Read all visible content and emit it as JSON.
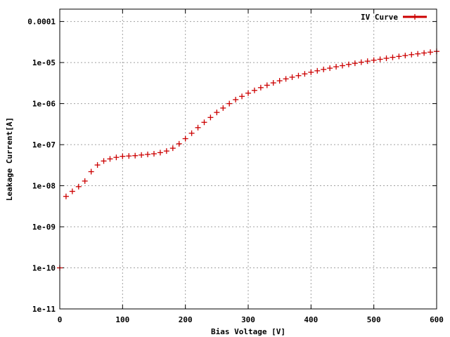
{
  "chart_data": {
    "type": "scatter",
    "xlabel": "Bias Voltage [V]",
    "ylabel": "Leakage Current[A]",
    "xlim": [
      0,
      600
    ],
    "ylim": [
      1e-11,
      0.0002
    ],
    "yscale": "log",
    "grid": true,
    "legend_position": "top-right",
    "x_ticks": [
      0,
      100,
      200,
      300,
      400,
      500,
      600
    ],
    "x_tick_labels": [
      "0",
      "100",
      "200",
      "300",
      "400",
      "500",
      "600"
    ],
    "y_ticks": [
      1e-11,
      1e-10,
      1e-09,
      1e-08,
      1e-07,
      1e-06,
      1e-05,
      0.0001
    ],
    "y_tick_labels": [
      "1e-11",
      "1e-10",
      "1e-09",
      "1e-08",
      "1e-07",
      "1e-06",
      "1e-05",
      "0.0001"
    ],
    "series": [
      {
        "name": "IV Curve",
        "color": "#cc0000",
        "marker": "plus",
        "x": [
          0,
          10,
          20,
          30,
          40,
          50,
          60,
          70,
          80,
          90,
          100,
          110,
          120,
          130,
          140,
          150,
          160,
          170,
          180,
          190,
          200,
          210,
          220,
          230,
          240,
          250,
          260,
          270,
          280,
          290,
          300,
          310,
          320,
          330,
          340,
          350,
          360,
          370,
          380,
          390,
          400,
          410,
          420,
          430,
          440,
          450,
          460,
          470,
          480,
          490,
          500,
          510,
          520,
          530,
          540,
          550,
          560,
          570,
          580,
          590,
          600
        ],
        "values": [
          1e-10,
          5.5e-09,
          7.3e-09,
          9.5e-09,
          1.3e-08,
          2.2e-08,
          3.2e-08,
          4e-08,
          4.5e-08,
          4.9e-08,
          5.2e-08,
          5.3e-08,
          5.4e-08,
          5.6e-08,
          5.8e-08,
          6e-08,
          6.4e-08,
          7e-08,
          8.2e-08,
          1.05e-07,
          1.4e-07,
          1.9e-07,
          2.6e-07,
          3.5e-07,
          4.6e-07,
          6.1e-07,
          7.8e-07,
          1e-06,
          1.25e-06,
          1.5e-06,
          1.8e-06,
          2.1e-06,
          2.45e-06,
          2.8e-06,
          3.2e-06,
          3.6e-06,
          4e-06,
          4.4e-06,
          4.8e-06,
          5.3e-06,
          5.8e-06,
          6.3e-06,
          6.8e-06,
          7.3e-06,
          7.9e-06,
          8.4e-06,
          9e-06,
          9.6e-06,
          1.02e-05,
          1.08e-05,
          1.14e-05,
          1.2e-05,
          1.27e-05,
          1.34e-05,
          1.41e-05,
          1.48e-05,
          1.56e-05,
          1.63e-05,
          1.71e-05,
          1.79e-05,
          1.87e-05
        ]
      }
    ]
  }
}
